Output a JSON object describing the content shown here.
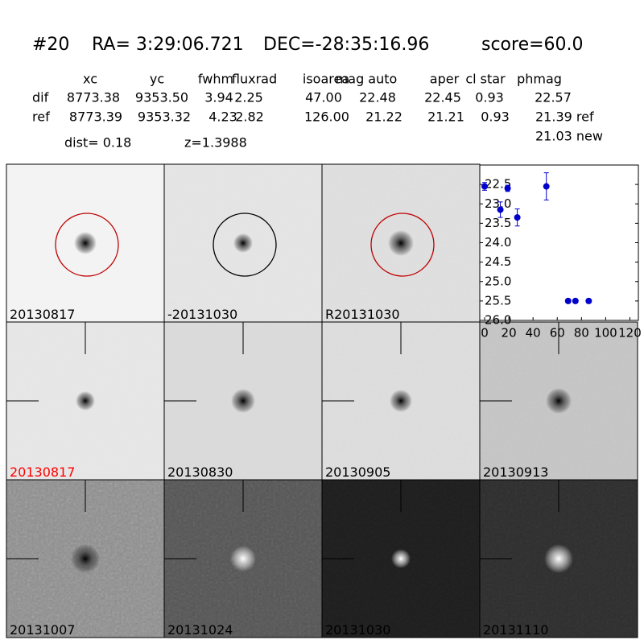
{
  "header": {
    "id": "#20",
    "ra": "RA= 3:29:06.721",
    "dec": "DEC=-28:35:16.96",
    "score": "score=60.0"
  },
  "table": {
    "columns": [
      "xc",
      "yc",
      "fwhm",
      "fluxrad",
      "isoarea",
      "mag auto",
      "aper",
      "cl star",
      "phmag"
    ],
    "rows": [
      [
        "dif",
        "8773.38",
        "9353.50",
        "3.94",
        "2.25",
        "47.00",
        "22.48",
        "22.45",
        "0.93",
        "22.57"
      ],
      [
        "ref",
        "8773.39",
        "9353.32",
        "4.23",
        "2.82",
        "126.00",
        "21.22",
        "21.21",
        "0.93",
        "21.39 ref"
      ]
    ],
    "extra": "21.03 new"
  },
  "dist": "dist=  0.18",
  "z": "z=1.3988",
  "panels": [
    "20130817",
    "-20131030",
    "R20131030",
    "20130817",
    "20130830",
    "20130905",
    "20130913",
    "20131007",
    "20131024",
    "20131030",
    "20131110"
  ],
  "chart_data": {
    "type": "scatter",
    "color": "#0000cc",
    "x": [
      0,
      13,
      19,
      27,
      51,
      69,
      75,
      86
    ],
    "values": [
      22.55,
      23.15,
      22.6,
      23.35,
      22.55,
      25.5,
      25.5,
      25.5
    ],
    "errors": [
      0.1,
      0.2,
      0.08,
      0.22,
      0.35,
      0.05,
      0.05,
      0.05
    ],
    "xlim": [
      -4,
      127
    ],
    "ylim": [
      26.0,
      22.0
    ],
    "xticks": [
      0,
      20,
      40,
      60,
      80,
      100,
      120
    ],
    "yticks": [
      22.5,
      {
        "value": 23,
        "label": "23.0"
      },
      23.5,
      {
        "value": 24,
        "label": "24.0"
      },
      24.5,
      {
        "value": 25,
        "label": "25.0"
      },
      25.5,
      {
        "value": 26,
        "label": "26.0"
      }
    ]
  }
}
